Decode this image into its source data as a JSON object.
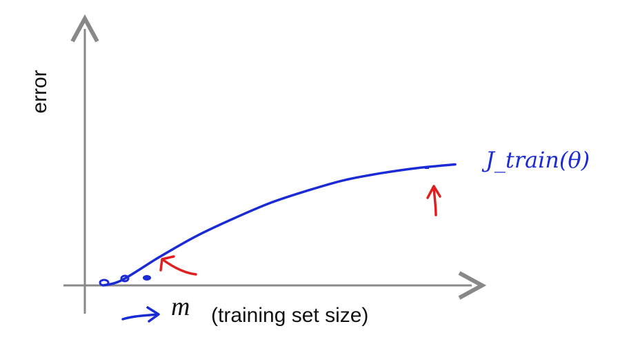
{
  "chart_data": {
    "type": "line",
    "title": "",
    "xlabel_symbol": "m",
    "xlabel": "(training set size)",
    "ylabel": "error",
    "grid": false,
    "series": [
      {
        "name": "J_train(θ)",
        "label_text": "J_train(θ)",
        "color": "#1a2bd6",
        "x": [
          0.05,
          0.1,
          0.2,
          0.3,
          0.4,
          0.5,
          0.6,
          0.7,
          0.8,
          0.9,
          1.0
        ],
        "y": [
          0.0,
          0.03,
          0.16,
          0.28,
          0.38,
          0.47,
          0.54,
          0.6,
          0.64,
          0.67,
          0.69
        ]
      }
    ],
    "annotations": [
      {
        "type": "arrow",
        "color": "#e02020",
        "target": "small training set"
      },
      {
        "type": "arrow",
        "color": "#e02020",
        "target": "large training set"
      }
    ]
  },
  "colors": {
    "axis": "#888888",
    "curve": "#1a2bd6",
    "annotation": "#e02020"
  }
}
